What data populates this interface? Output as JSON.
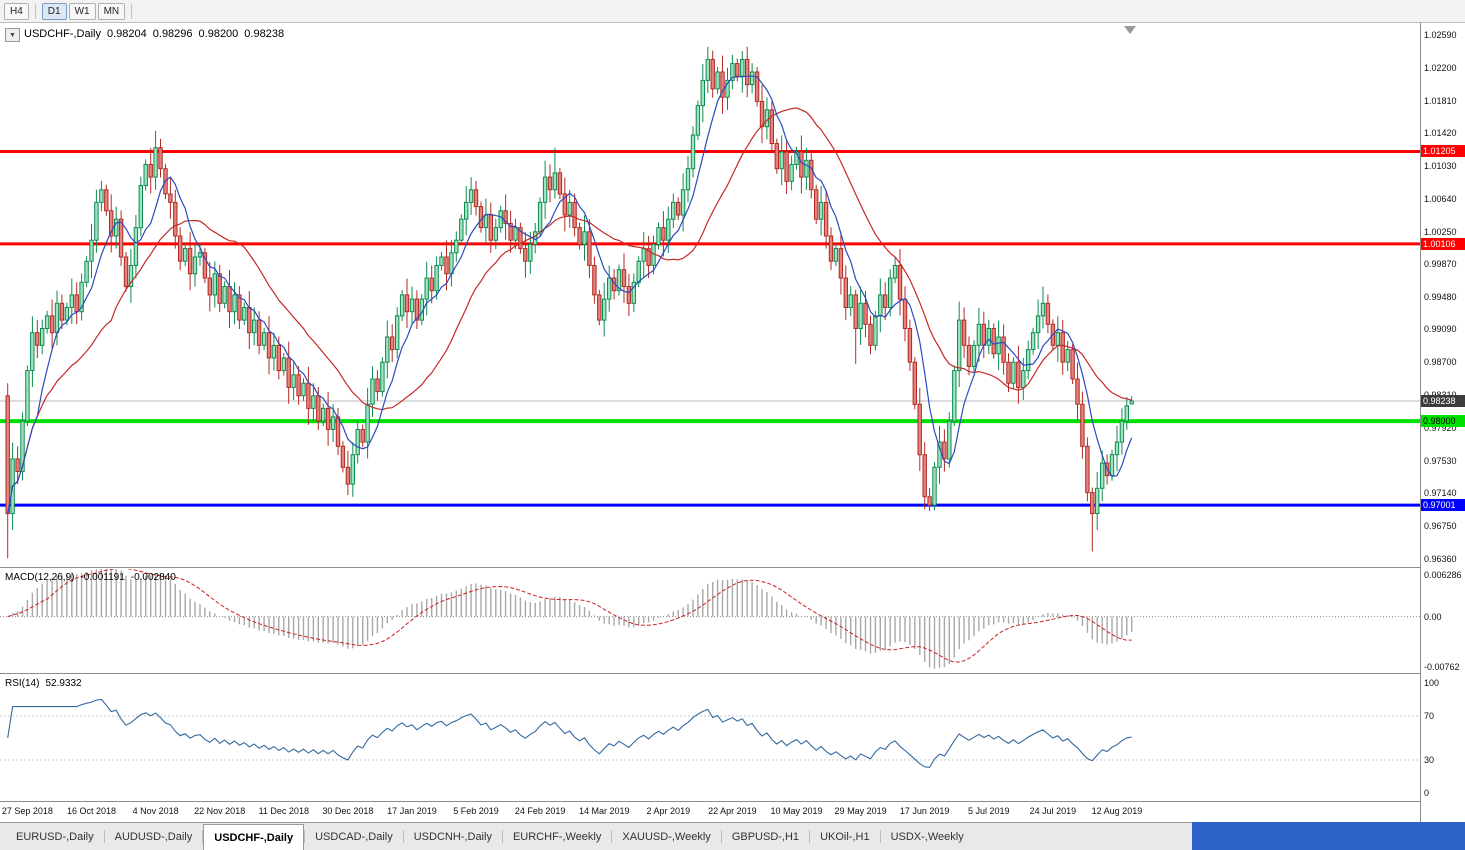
{
  "toolbar": {
    "timeframes": [
      "H4",
      "D1",
      "W1",
      "MN"
    ],
    "active": "D1"
  },
  "icons": {
    "dropdown": "▼"
  },
  "chart": {
    "title": "USDCHF-,Daily",
    "ohlc": {
      "open": "0.98204",
      "high": "0.98296",
      "low": "0.98200",
      "close": "0.98238"
    },
    "price_axis": [
      "1.02590",
      "1.02200",
      "1.01810",
      "1.01420",
      "1.01030",
      "1.00640",
      "1.00250",
      "0.99870",
      "0.99480",
      "0.99090",
      "0.98700",
      "0.98310",
      "0.97920",
      "0.97530",
      "0.97140",
      "0.96750",
      "0.96360"
    ],
    "badges": [
      {
        "text": "1.01205",
        "value": 1.01205,
        "bg": "#ff0000",
        "fg": "#ffffff"
      },
      {
        "text": "1.00106",
        "value": 1.00106,
        "bg": "#ff0000",
        "fg": "#ffffff"
      },
      {
        "text": "0.98238",
        "value": 0.98238,
        "bg": "#3c3c3c",
        "fg": "#ffffff"
      },
      {
        "text": "0.98000",
        "value": 0.98,
        "bg": "#00e000",
        "fg": "#000000"
      },
      {
        "text": "0.97001",
        "value": 0.97001,
        "bg": "#0000ff",
        "fg": "#ffffff"
      }
    ]
  },
  "panels": {
    "macd": {
      "label": "MACD(12,26,9)",
      "value_main": "-0.001191",
      "value_signal": "-0.002840",
      "axis_top": "0.006286",
      "axis_zero": "0.00",
      "axis_bottom": "-0.00762"
    },
    "rsi": {
      "label": "RSI(14)",
      "value": "52.9332",
      "axis": [
        "100",
        "70",
        "30",
        "0"
      ]
    }
  },
  "tabs": {
    "items": [
      "EURUSD-,Daily",
      "AUDUSD-,Daily",
      "USDCHF-,Daily",
      "USDCAD-,Daily",
      "USDCNH-,Daily",
      "EURCHF-,Weekly",
      "XAUUSD-,Weekly",
      "GBPUSD-,H1",
      "UKOil-,H1",
      "USDX-,Weekly"
    ],
    "active_index": 2
  },
  "chart_data": {
    "type": "candlestick",
    "symbol": "USDCHF",
    "timeframe": "Daily",
    "quote": {
      "open": 0.98204,
      "high": 0.98296,
      "low": 0.982,
      "close": 0.98238
    },
    "price_range": [
      0.9636,
      1.0259
    ],
    "first_open": 0.983,
    "closes": [
      0.969,
      0.9755,
      0.974,
      0.98,
      0.986,
      0.9905,
      0.989,
      0.991,
      0.9925,
      0.9905,
      0.994,
      0.992,
      0.9935,
      0.995,
      0.993,
      0.9965,
      0.999,
      1.0015,
      1.006,
      1.0075,
      1.005,
      1.002,
      1.004,
      0.9995,
      0.996,
      0.9985,
      1.003,
      1.008,
      1.0105,
      1.009,
      1.0125,
      1.01,
      1.007,
      1.006,
      1.002,
      0.999,
      1.0005,
      0.9975,
      0.9995,
      1.0,
      0.997,
      0.995,
      0.9975,
      0.994,
      0.996,
      0.993,
      0.995,
      0.992,
      0.9935,
      0.9905,
      0.992,
      0.989,
      0.9905,
      0.9875,
      0.989,
      0.986,
      0.9875,
      0.984,
      0.9855,
      0.983,
      0.9845,
      0.9815,
      0.983,
      0.98,
      0.9815,
      0.979,
      0.9805,
      0.977,
      0.9745,
      0.9725,
      0.976,
      0.979,
      0.9775,
      0.982,
      0.985,
      0.9835,
      0.987,
      0.99,
      0.9885,
      0.9925,
      0.995,
      0.993,
      0.9945,
      0.992,
      0.9945,
      0.997,
      0.9955,
      0.9985,
      0.9995,
      0.9975,
      1.0,
      1.0015,
      1.004,
      1.006,
      1.0075,
      1.0055,
      1.003,
      1.0045,
      1.0015,
      1.003,
      1.005,
      1.0035,
      1.0015,
      1.003,
      1.0005,
      0.999,
      1.001,
      1.0025,
      1.006,
      1.009,
      1.0075,
      1.0095,
      1.007,
      1.0045,
      1.006,
      1.003,
      1.001,
      1.0025,
      0.9985,
      0.995,
      0.992,
      0.9945,
      0.997,
      0.9955,
      0.998,
      0.996,
      0.994,
      0.9965,
      0.999,
      1.0005,
      0.9985,
      1.001,
      1.003,
      1.0015,
      1.004,
      1.006,
      1.0045,
      1.0075,
      1.01,
      1.014,
      1.0175,
      1.0205,
      1.023,
      1.0195,
      1.0215,
      1.0185,
      1.0205,
      1.0225,
      1.021,
      1.023,
      1.02,
      1.0215,
      1.018,
      1.015,
      1.017,
      1.013,
      1.01,
      1.012,
      1.0085,
      1.0105,
      1.012,
      1.009,
      1.011,
      1.0075,
      1.004,
      1.006,
      1.002,
      0.999,
      1.0005,
      0.997,
      0.9935,
      0.995,
      0.991,
      0.994,
      0.9915,
      0.989,
      0.9925,
      0.995,
      0.9935,
      0.997,
      0.9985,
      0.9945,
      0.991,
      0.987,
      0.982,
      0.976,
      0.971,
      0.97,
      0.9745,
      0.9775,
      0.9755,
      0.98,
      0.986,
      0.992,
      0.989,
      0.9865,
      0.989,
      0.9915,
      0.989,
      0.991,
      0.988,
      0.99,
      0.987,
      0.9845,
      0.987,
      0.984,
      0.986,
      0.9885,
      0.9905,
      0.9925,
      0.994,
      0.9915,
      0.989,
      0.9905,
      0.987,
      0.9885,
      0.985,
      0.982,
      0.977,
      0.9715,
      0.969,
      0.972,
      0.975,
      0.9735,
      0.976,
      0.9775,
      0.98,
      0.9818,
      0.98238
    ],
    "extremes": {
      "0": {
        "open": 0.983,
        "high": 0.9845,
        "low": 0.9637
      },
      "30": {
        "high": 1.0145
      },
      "69": {
        "low": 0.9712
      },
      "111": {
        "high": 1.0125
      },
      "142": {
        "high": 1.0245
      },
      "149": {
        "high": 1.024
      },
      "172": {
        "low": 0.9868
      },
      "180": {
        "high": 0.9995
      },
      "187": {
        "low": 0.9693
      },
      "193": {
        "high": 0.9942
      },
      "210": {
        "high": 0.996
      },
      "220": {
        "low": 0.9645
      },
      "228": {
        "open": 0.98204,
        "high": 0.98296,
        "low": 0.982
      }
    },
    "horizontal_levels": [
      {
        "value": 1.01205,
        "color": "#ff0000",
        "width": 3
      },
      {
        "value": 1.00106,
        "color": "#ff0000",
        "width": 3
      },
      {
        "value": 0.98,
        "color": "#00e000",
        "width": 4
      },
      {
        "value": 0.97001,
        "color": "#0000ff",
        "width": 3
      }
    ],
    "current_price": 0.98238,
    "indicators": [
      {
        "name": "MACD",
        "params": "12,26,9",
        "values": [
          -0.001191,
          -0.00284
        ],
        "range": [
          -0.00762,
          0.006286
        ]
      },
      {
        "name": "RSI",
        "params": "14",
        "value": 52.9332,
        "levels": [
          30,
          70
        ],
        "range": [
          0,
          100
        ]
      }
    ],
    "x_labels": [
      "27 Sep 2018",
      "16 Oct 2018",
      "4 Nov 2018",
      "22 Nov 2018",
      "11 Dec 2018",
      "30 Dec 2018",
      "17 Jan 2019",
      "5 Feb 2019",
      "24 Feb 2019",
      "14 Mar 2019",
      "2 Apr 2019",
      "22 Apr 2019",
      "10 May 2019",
      "29 May 2019",
      "17 Jun 2019",
      "5 Jul 2019",
      "24 Jul 2019",
      "12 Aug 2019"
    ],
    "style": {
      "bull_fill": "#9fe3bf",
      "bull_stroke": "#0e8a52",
      "bear_fill": "#e2837d",
      "bear_stroke": "#b22a23",
      "ma_fast": "#2b4bbf",
      "ma_slow": "#c62828",
      "macd_hist": "#a8a8a8",
      "macd_signal": "#cc2222",
      "rsi_line": "#34699f"
    }
  }
}
